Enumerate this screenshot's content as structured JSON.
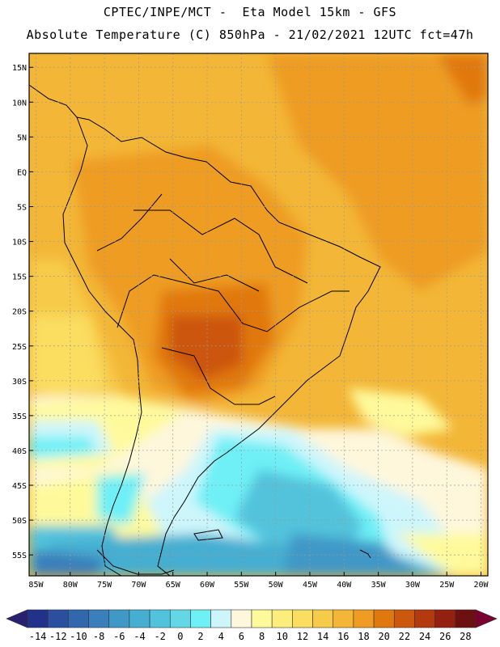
{
  "header": {
    "line1": "CPTEC/INPE/MCT -  Eta Model 15km - GFS",
    "line2": "Absolute Temperature (C) 850hPa - 21/02/2021 12UTC fct=47h"
  },
  "map": {
    "lon_range": [
      -86,
      -19
    ],
    "lat_range": [
      -58,
      17
    ],
    "lat_ticks": [
      {
        "value": 15,
        "label": "15N"
      },
      {
        "value": 10,
        "label": "10N"
      },
      {
        "value": 5,
        "label": "5N"
      },
      {
        "value": 0,
        "label": "EQ"
      },
      {
        "value": -5,
        "label": "5S"
      },
      {
        "value": -10,
        "label": "10S"
      },
      {
        "value": -15,
        "label": "15S"
      },
      {
        "value": -20,
        "label": "20S"
      },
      {
        "value": -25,
        "label": "25S"
      },
      {
        "value": -30,
        "label": "30S"
      },
      {
        "value": -35,
        "label": "35S"
      },
      {
        "value": -40,
        "label": "40S"
      },
      {
        "value": -45,
        "label": "45S"
      },
      {
        "value": -50,
        "label": "50S"
      },
      {
        "value": -55,
        "label": "55S"
      }
    ],
    "lon_ticks": [
      {
        "value": -85,
        "label": "85W"
      },
      {
        "value": -80,
        "label": "80W"
      },
      {
        "value": -75,
        "label": "75W"
      },
      {
        "value": -70,
        "label": "70W"
      },
      {
        "value": -65,
        "label": "65W"
      },
      {
        "value": -60,
        "label": "60W"
      },
      {
        "value": -55,
        "label": "55W"
      },
      {
        "value": -50,
        "label": "50W"
      },
      {
        "value": -45,
        "label": "45W"
      },
      {
        "value": -40,
        "label": "40W"
      },
      {
        "value": -35,
        "label": "35W"
      },
      {
        "value": -30,
        "label": "30W"
      },
      {
        "value": -25,
        "label": "25W"
      },
      {
        "value": -20,
        "label": "20W"
      }
    ],
    "gridlines": true
  },
  "colorbar": {
    "labels": [
      "-14",
      "-12",
      "-10",
      "-8",
      "-6",
      "-4",
      "-2",
      "0",
      "2",
      "4",
      "6",
      "8",
      "10",
      "12",
      "14",
      "16",
      "18",
      "20",
      "22",
      "24",
      "26",
      "28"
    ],
    "colors": [
      "#20328a",
      "#2a4f9e",
      "#3168ad",
      "#3a7fbb",
      "#3f98c6",
      "#45aed1",
      "#52c3dc",
      "#62d7e6",
      "#6ef0f6",
      "#cdf6fb",
      "#fef7dc",
      "#fefa9c",
      "#fdee7c",
      "#fbdd60",
      "#f7cb4a",
      "#f3b636",
      "#ee9c22",
      "#e1780d",
      "#cc570d",
      "#b4390d",
      "#932010",
      "#6d1010"
    ],
    "left_color": "#2a2070",
    "right_color": "#7a0030"
  }
}
